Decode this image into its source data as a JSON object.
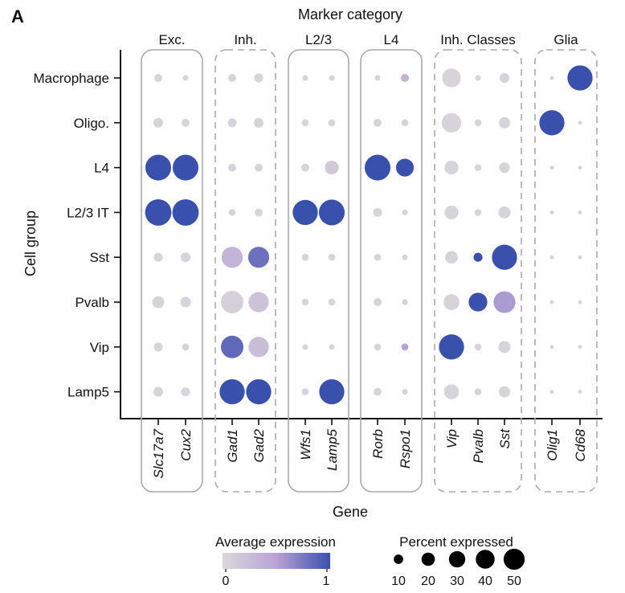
{
  "panel_label": "A",
  "chart_data": {
    "type": "dotplot",
    "title": "Marker category",
    "xlabel": "Gene",
    "ylabel": "Cell group",
    "groups": [
      {
        "name": "Exc.",
        "genes": [
          "Slc17a7",
          "Cux2"
        ],
        "border": "solid"
      },
      {
        "name": "Inh.",
        "genes": [
          "Gad1",
          "Gad2"
        ],
        "border": "dashed"
      },
      {
        "name": "L2/3",
        "genes": [
          "Wfs1",
          "Lamp5"
        ],
        "border": "solid"
      },
      {
        "name": "L4",
        "genes": [
          "Rorb",
          "Rspo1"
        ],
        "border": "solid"
      },
      {
        "name": "Inh. Classes",
        "genes": [
          "Vip",
          "Pvalb",
          "Sst"
        ],
        "border": "dashed"
      },
      {
        "name": "Glia",
        "genes": [
          "Olig1",
          "Cd68"
        ],
        "border": "dashed"
      }
    ],
    "genes": [
      "Slc17a7",
      "Cux2",
      "Gad1",
      "Gad2",
      "Wfs1",
      "Lamp5",
      "Rorb",
      "Rspo1",
      "Vip",
      "Pvalb",
      "Sst",
      "Olig1",
      "Cd68"
    ],
    "cell_groups": [
      "Macrophage",
      "Oligo.",
      "L4",
      "L2/3 IT",
      "Sst",
      "Pvalb",
      "Vip",
      "Lamp5"
    ],
    "pct": [
      [
        4,
        2,
        4,
        5,
        2,
        2,
        2,
        4,
        22,
        2,
        6,
        1,
        40
      ],
      [
        6,
        4,
        5,
        6,
        3,
        3,
        4,
        3,
        24,
        3,
        8,
        40,
        1
      ],
      [
        42,
        42,
        4,
        4,
        4,
        12,
        42,
        20,
        12,
        3,
        7,
        1,
        1
      ],
      [
        44,
        44,
        3,
        4,
        40,
        42,
        5,
        2,
        12,
        3,
        9,
        1,
        1
      ],
      [
        5,
        6,
        28,
        28,
        3,
        3,
        3,
        2,
        10,
        5,
        40,
        1,
        1
      ],
      [
        9,
        7,
        32,
        26,
        3,
        3,
        4,
        2,
        16,
        22,
        30,
        1,
        1
      ],
      [
        5,
        3,
        32,
        26,
        2,
        2,
        3,
        3,
        40,
        3,
        9,
        1,
        1
      ],
      [
        6,
        5,
        40,
        40,
        3,
        40,
        4,
        2,
        14,
        3,
        8,
        1,
        1
      ]
    ],
    "avg": [
      [
        0.05,
        0.05,
        0.05,
        0.05,
        0.05,
        0.05,
        0.05,
        0.35,
        0.05,
        0.05,
        0.05,
        0.05,
        1.0
      ],
      [
        0.05,
        0.05,
        0.05,
        0.05,
        0.05,
        0.05,
        0.05,
        0.05,
        0.05,
        0.05,
        0.05,
        1.0,
        0.05
      ],
      [
        1.0,
        1.0,
        0.05,
        0.05,
        0.05,
        0.15,
        1.0,
        1.0,
        0.05,
        0.05,
        0.05,
        0.05,
        0.05
      ],
      [
        1.0,
        1.0,
        0.05,
        0.05,
        1.0,
        1.0,
        0.05,
        0.05,
        0.05,
        0.05,
        0.05,
        0.05,
        0.05
      ],
      [
        0.05,
        0.05,
        0.35,
        0.8,
        0.05,
        0.05,
        0.05,
        0.05,
        0.05,
        1.0,
        1.0,
        0.05,
        0.05
      ],
      [
        0.05,
        0.05,
        0.08,
        0.2,
        0.05,
        0.05,
        0.05,
        0.05,
        0.05,
        1.0,
        0.55,
        0.05,
        0.05
      ],
      [
        0.05,
        0.05,
        0.85,
        0.25,
        0.05,
        0.05,
        0.05,
        0.5,
        1.0,
        0.05,
        0.05,
        0.05,
        0.05
      ],
      [
        0.05,
        0.05,
        1.0,
        1.0,
        0.05,
        1.0,
        0.05,
        0.05,
        0.05,
        0.05,
        0.05,
        0.05,
        0.05
      ]
    ],
    "color_legend": {
      "title": "Average expression",
      "min_label": "0",
      "max_label": "1",
      "low_color": "#d9d9d9",
      "mid_color": "#b9a2d6",
      "high_color": "#3a50ad"
    },
    "size_legend": {
      "title": "Percent expressed",
      "values": [
        10,
        20,
        30,
        40,
        50
      ]
    },
    "grid": false
  }
}
